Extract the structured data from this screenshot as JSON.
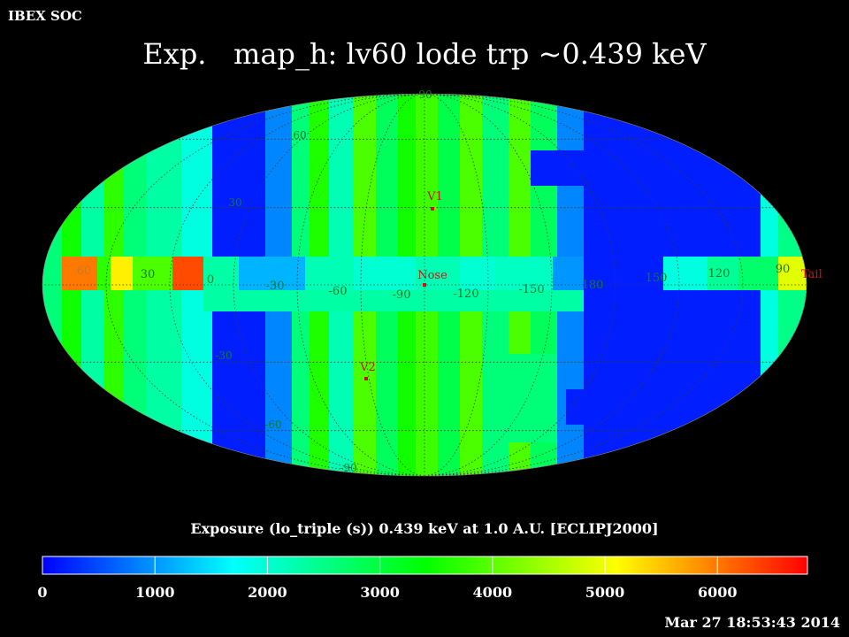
{
  "header": {
    "org_label": "IBEX SOC",
    "title": "Exp.   map_h: lv60 lode trp ~0.439 keV"
  },
  "map": {
    "projection": "mollweide-style ecliptic sky map",
    "longitude_labels": [
      {
        "text": "60",
        "color": "#c87a28"
      },
      {
        "text": "30",
        "color": "#127a2a"
      },
      {
        "text": "0",
        "color": "#127a2a"
      },
      {
        "text": "-30",
        "color": "#127a2a"
      },
      {
        "text": "-60",
        "color": "#127a2a"
      },
      {
        "text": "-90",
        "color": "#127a2a"
      },
      {
        "text": "-120",
        "color": "#127a2a"
      },
      {
        "text": "-150",
        "color": "#127a2a"
      },
      {
        "text": "180",
        "color": "#127a2a"
      },
      {
        "text": "150",
        "color": "#127a2a"
      },
      {
        "text": "120",
        "color": "#127a2a"
      },
      {
        "text": "90",
        "color": "#127a2a"
      }
    ],
    "latitude_labels": [
      {
        "text": "90"
      },
      {
        "text": "60"
      },
      {
        "text": "30"
      },
      {
        "text": "-30"
      },
      {
        "text": "-60"
      },
      {
        "text": "-90"
      }
    ],
    "markers": [
      {
        "label": "V1",
        "color": "#cc1010"
      },
      {
        "label": "Nose",
        "color": "#cc1010"
      },
      {
        "label": "V2",
        "color": "#cc1010"
      },
      {
        "label": "Tail",
        "color": "#cc1010"
      }
    ]
  },
  "colorbar": {
    "title": "Exposure (lo_triple (s))  0.439 keV at 1.0 A.U. [ECLIPJ2000]",
    "min": 0,
    "max": 6800,
    "ticks": [
      "0",
      "1000",
      "2000",
      "3000",
      "4000",
      "5000",
      "6000"
    ],
    "colors": [
      "#0000ff",
      "#0080ff",
      "#00ffff",
      "#00ff80",
      "#00ff00",
      "#80ff00",
      "#ffff00",
      "#ff8000",
      "#ff0000"
    ]
  },
  "footer": {
    "timestamp": "Mar 27 18:53:43 2014"
  }
}
